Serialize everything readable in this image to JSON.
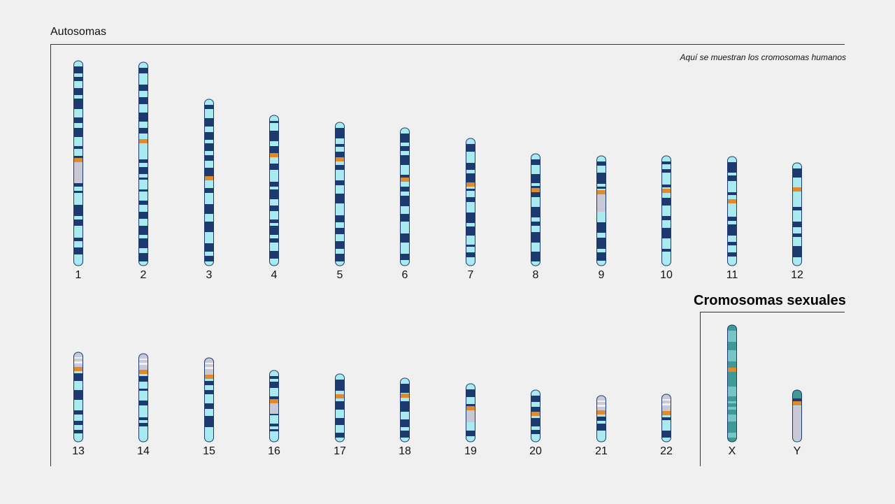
{
  "autosomes": {
    "title": "Autosomas",
    "caption": "Aquí se muestran los cromosomas humanos"
  },
  "sex_chromosomes": {
    "title": "Cromosomas sexuales"
  },
  "colors": {
    "light_band": "#a8eaf0",
    "dark_band": "#1c3a6e",
    "teal_band": "#3f9a95",
    "centromere": "#e08a2c",
    "heterochromatin": "#c8c8d6",
    "outline": "#1c3a6e"
  },
  "chromosomes": [
    {
      "label": "1"
    },
    {
      "label": "2"
    },
    {
      "label": "3"
    },
    {
      "label": "4"
    },
    {
      "label": "5"
    },
    {
      "label": "6"
    },
    {
      "label": "7"
    },
    {
      "label": "8"
    },
    {
      "label": "9"
    },
    {
      "label": "10"
    },
    {
      "label": "11"
    },
    {
      "label": "12"
    },
    {
      "label": "13"
    },
    {
      "label": "14"
    },
    {
      "label": "15"
    },
    {
      "label": "16"
    },
    {
      "label": "17"
    },
    {
      "label": "18"
    },
    {
      "label": "19"
    },
    {
      "label": "20"
    },
    {
      "label": "21"
    },
    {
      "label": "22"
    },
    {
      "label": "X"
    },
    {
      "label": "Y"
    }
  ]
}
